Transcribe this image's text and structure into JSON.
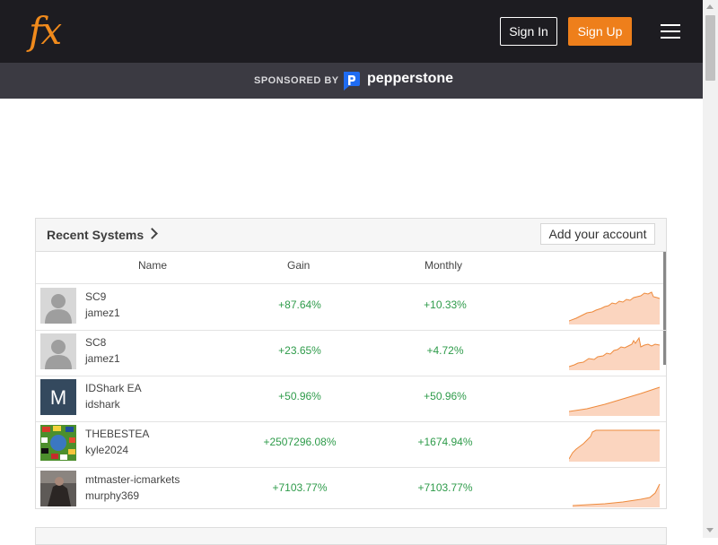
{
  "header": {
    "logo": "fx",
    "signin_label": "Sign In",
    "signup_label": "Sign Up"
  },
  "sponsor": {
    "label": "SPONSORED BY",
    "brand": "pepperstone"
  },
  "panel": {
    "title": "Recent Systems",
    "add_account_label": "Add your account",
    "columns": {
      "name": "Name",
      "gain": "Gain",
      "monthly": "Monthly"
    },
    "rows": [
      {
        "name": "SC9",
        "user": "jamez1",
        "gain": "+87.64%",
        "monthly": "+10.33%",
        "avatar": "default-user"
      },
      {
        "name": "SC8",
        "user": "jamez1",
        "gain": "+23.65%",
        "monthly": "+4.72%",
        "avatar": "default-user"
      },
      {
        "name": "IDShark EA",
        "user": "idshark",
        "gain": "+50.96%",
        "monthly": "+50.96%",
        "avatar": "letter",
        "avatar_letter": "M"
      },
      {
        "name": "THEBESTEA",
        "user": "kyle2024",
        "gain": "+2507296.08%",
        "monthly": "+1674.94%",
        "avatar": "flags-image"
      },
      {
        "name": "mtmaster-icmarkets",
        "user": "murphy369",
        "gain": "+7103.77%",
        "monthly": "+7103.77%",
        "avatar": "photo"
      }
    ]
  },
  "colors": {
    "topbar": "#1d1c21",
    "sponsor_bar": "#3b3a42",
    "accent_orange": "#ee7f1b",
    "positive_green": "#2e9b4a",
    "spark_line": "#ee8a3c",
    "spark_fill": "#fbd5bf"
  }
}
